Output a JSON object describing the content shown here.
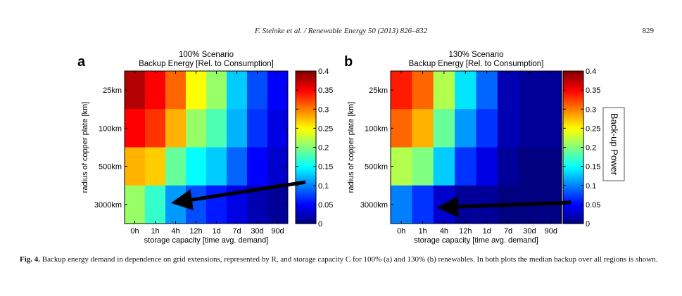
{
  "header": {
    "journal_ref": "F. Steinke et al. / Renewable Energy 50 (2013) 826–832",
    "page_number": "829"
  },
  "caption": {
    "label": "Fig. 4.",
    "text": "Backup energy demand in dependence on grid extensions, represented by R, and storage capacity C for 100% (a) and 130% (b) renewables. In both plots the median backup over all regions is shown."
  },
  "colorbar_title": "Back-up Power",
  "chart_data": [
    {
      "type": "heatmap",
      "panel_label": "a",
      "title": "100% Scenario",
      "subtitle": "Backup Energy [Rel. to Consumption]",
      "xlabel": "storage capacity [time avg. demand]",
      "ylabel": "radius of copper plate [km]",
      "x_categories": [
        "0h",
        "1h",
        "4h",
        "12h",
        "1d",
        "7d",
        "30d",
        "90d"
      ],
      "y_categories": [
        "25km",
        "100km",
        "500km",
        "3000km"
      ],
      "values": [
        [
          0.38,
          0.35,
          0.31,
          0.25,
          0.21,
          0.13,
          0.08,
          0.05
        ],
        [
          0.35,
          0.33,
          0.28,
          0.21,
          0.18,
          0.12,
          0.07,
          0.04
        ],
        [
          0.28,
          0.27,
          0.19,
          0.15,
          0.13,
          0.09,
          0.05,
          0.03
        ],
        [
          0.21,
          0.17,
          0.11,
          0.08,
          0.06,
          0.04,
          0.02,
          0.01
        ]
      ],
      "colorbar": {
        "range": [
          0,
          0.4
        ],
        "ticks": [
          "0",
          "0.05",
          "0.1",
          "0.15",
          "0.2",
          "0.25",
          "0.3",
          "0.35",
          "0.4"
        ]
      },
      "colormap": "jet"
    },
    {
      "type": "heatmap",
      "panel_label": "b",
      "title": "130% Scenario",
      "subtitle": "Backup Energy [Rel. to Consumption]",
      "xlabel": "storage capacity [time avg. demand]",
      "ylabel": "radius of copper plate [km]",
      "x_categories": [
        "0h",
        "1h",
        "4h",
        "12h",
        "1d",
        "7d",
        "30d",
        "90d"
      ],
      "y_categories": [
        "25km",
        "100km",
        "500km",
        "3000km"
      ],
      "values": [
        [
          0.34,
          0.31,
          0.22,
          0.14,
          0.09,
          0.02,
          0.01,
          0.01
        ],
        [
          0.31,
          0.28,
          0.19,
          0.11,
          0.07,
          0.02,
          0.01,
          0.01
        ],
        [
          0.22,
          0.2,
          0.13,
          0.07,
          0.04,
          0.01,
          0.0,
          0.0
        ],
        [
          0.1,
          0.07,
          0.03,
          0.01,
          0.01,
          0.0,
          0.0,
          0.0
        ]
      ],
      "colorbar": {
        "range": [
          0,
          0.4
        ],
        "ticks": [
          "0",
          "0.05",
          "0.1",
          "0.15",
          "0.2",
          "0.25",
          "0.3",
          "0.35",
          "0.4"
        ]
      },
      "colormap": "jet"
    }
  ]
}
